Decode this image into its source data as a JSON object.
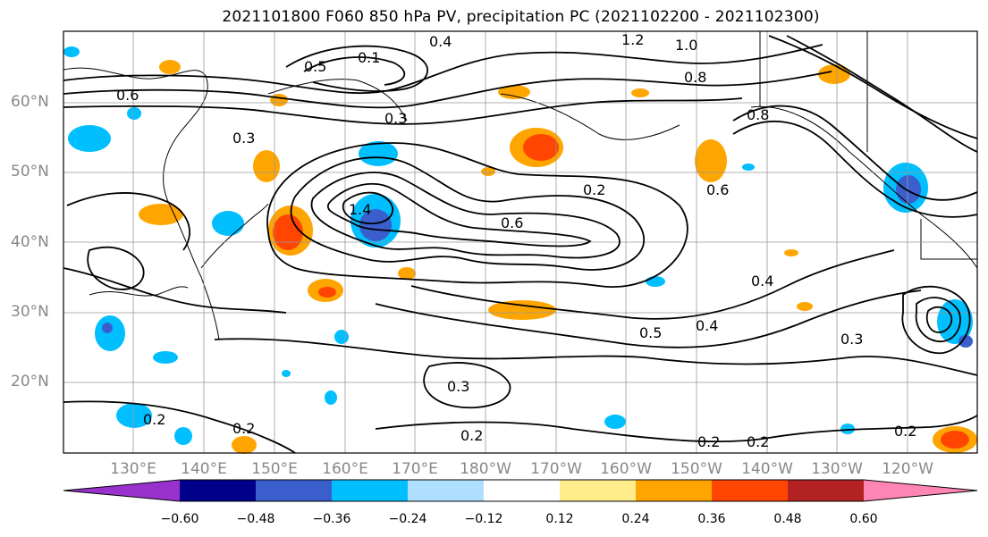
{
  "title": "2021101800 F060 850 hPa PV, precipitation PC (2021102200 - 2021102300)",
  "map": {
    "lat_labels": [
      "60°N",
      "50°N",
      "40°N",
      "30°N",
      "20°N"
    ],
    "lon_labels": [
      "130°E",
      "140°E",
      "150°E",
      "160°E",
      "170°E",
      "180°W",
      "170°W",
      "160°W",
      "150°W",
      "140°W",
      "130°W",
      "120°W"
    ],
    "contour_labels": [
      "1.2",
      "1.0",
      "0.8",
      "0.8",
      "0.6",
      "0.6",
      "0.6",
      "0.5",
      "0.5",
      "0.4",
      "0.4",
      "0.4",
      "0.3",
      "0.3",
      "0.3",
      "0.3",
      "0.2",
      "0.2",
      "0.2",
      "0.2",
      "0.2",
      "0.2",
      "0.2",
      "0.1",
      "1.4"
    ]
  },
  "colorbar": {
    "colors": [
      "#9932cc",
      "#00008b",
      "#3a5fcd",
      "#00bfff",
      "#afdfff",
      "#ffffff",
      "#ffec8b",
      "#ffa500",
      "#ff4500",
      "#b22222",
      "#ff85b4"
    ],
    "tick_labels": [
      "−0.60",
      "−0.48",
      "−0.36",
      "−0.24",
      "−0.12",
      "0.12",
      "0.24",
      "0.36",
      "0.48",
      "0.60"
    ]
  }
}
